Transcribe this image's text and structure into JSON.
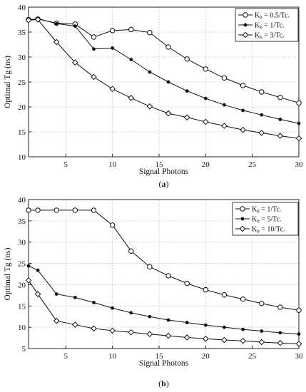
{
  "panels": [
    {
      "caption": "(a)",
      "caption_letter": "a",
      "chart_data": {
        "type": "line",
        "xlabel": "Signal Photons",
        "ylabel": "Optimal Tg (ns)",
        "xlim": [
          1,
          30
        ],
        "ylim": [
          10,
          40
        ],
        "xticks": [
          5,
          10,
          15,
          20,
          25,
          30
        ],
        "yticks": [
          10,
          15,
          20,
          25,
          30,
          35,
          40
        ],
        "grid": true,
        "legend_position": "top-right",
        "x": [
          1,
          2,
          4,
          6,
          8,
          10,
          12,
          14,
          16,
          18,
          20,
          22,
          24,
          26,
          28,
          30
        ],
        "series": [
          {
            "name": "Kb = 0.5/Tc.",
            "name_main": "K",
            "name_sub": "b",
            "name_rest": " = 0.5/Tc.",
            "marker": "circle",
            "values": [
              37.5,
              37.6,
              36.8,
              36.6,
              34.0,
              35.3,
              35.5,
              34.9,
              32.0,
              29.6,
              27.6,
              25.8,
              24.3,
              23.0,
              21.9,
              20.8
            ]
          },
          {
            "name": "Kb = 1/Tc.",
            "name_main": "K",
            "name_sub": "b",
            "name_rest": " = 1/Tc.",
            "marker": "dot",
            "values": [
              37.4,
              37.7,
              36.7,
              36.2,
              31.6,
              31.8,
              29.5,
              27.0,
              25.0,
              23.2,
              21.7,
              20.4,
              19.3,
              18.4,
              17.5,
              16.7
            ]
          },
          {
            "name": "Kb = 3/Tc.",
            "name_main": "K",
            "name_sub": "b",
            "name_rest": " = 3/Tc.",
            "marker": "diamond",
            "values": [
              37.4,
              37.5,
              33.0,
              28.9,
              26.0,
              23.6,
              21.8,
              20.1,
              18.7,
              17.9,
              17.0,
              16.2,
              15.4,
              14.8,
              14.2,
              13.7
            ]
          }
        ]
      }
    },
    {
      "caption": "(b)",
      "caption_letter": "b",
      "chart_data": {
        "type": "line",
        "xlabel": "Signal Photons",
        "ylabel": "Optimal Tg (ns)",
        "xlim": [
          1,
          30
        ],
        "ylim": [
          5,
          40
        ],
        "xticks": [
          5,
          10,
          15,
          20,
          25,
          30
        ],
        "yticks": [
          5,
          10,
          15,
          20,
          25,
          30,
          35,
          40
        ],
        "grid": true,
        "legend_position": "top-right",
        "x": [
          1,
          2,
          4,
          6,
          8,
          10,
          12,
          14,
          16,
          18,
          20,
          22,
          24,
          26,
          28,
          30
        ],
        "series": [
          {
            "name": "Kb = 1/Tc.",
            "name_main": "K",
            "name_sub": "b",
            "name_rest": " = 1/Tc.",
            "marker": "circle",
            "values": [
              37.5,
              37.5,
              37.5,
              37.5,
              37.5,
              34.0,
              27.9,
              24.2,
              22.1,
              20.3,
              18.8,
              17.6,
              16.6,
              15.6,
              14.7,
              14.0
            ]
          },
          {
            "name": "Kb = 5/Tc.",
            "name_main": "K",
            "name_sub": "b",
            "name_rest": " = 5/Tc.",
            "marker": "dot",
            "values": [
              24.4,
              23.4,
              17.8,
              17.0,
              15.8,
              14.5,
              13.4,
              12.5,
              11.7,
              11.1,
              10.5,
              10.0,
              9.5,
              9.1,
              8.7,
              8.4
            ]
          },
          {
            "name": "Kb = 10/Tc.",
            "name_main": "K",
            "name_sub": "b",
            "name_rest": " = 10/Tc.",
            "marker": "diamond",
            "values": [
              21.0,
              17.8,
              11.5,
              10.6,
              9.7,
              9.2,
              8.8,
              8.4,
              8.0,
              7.6,
              7.3,
              7.0,
              6.8,
              6.5,
              6.3,
              6.1
            ]
          }
        ]
      }
    }
  ]
}
